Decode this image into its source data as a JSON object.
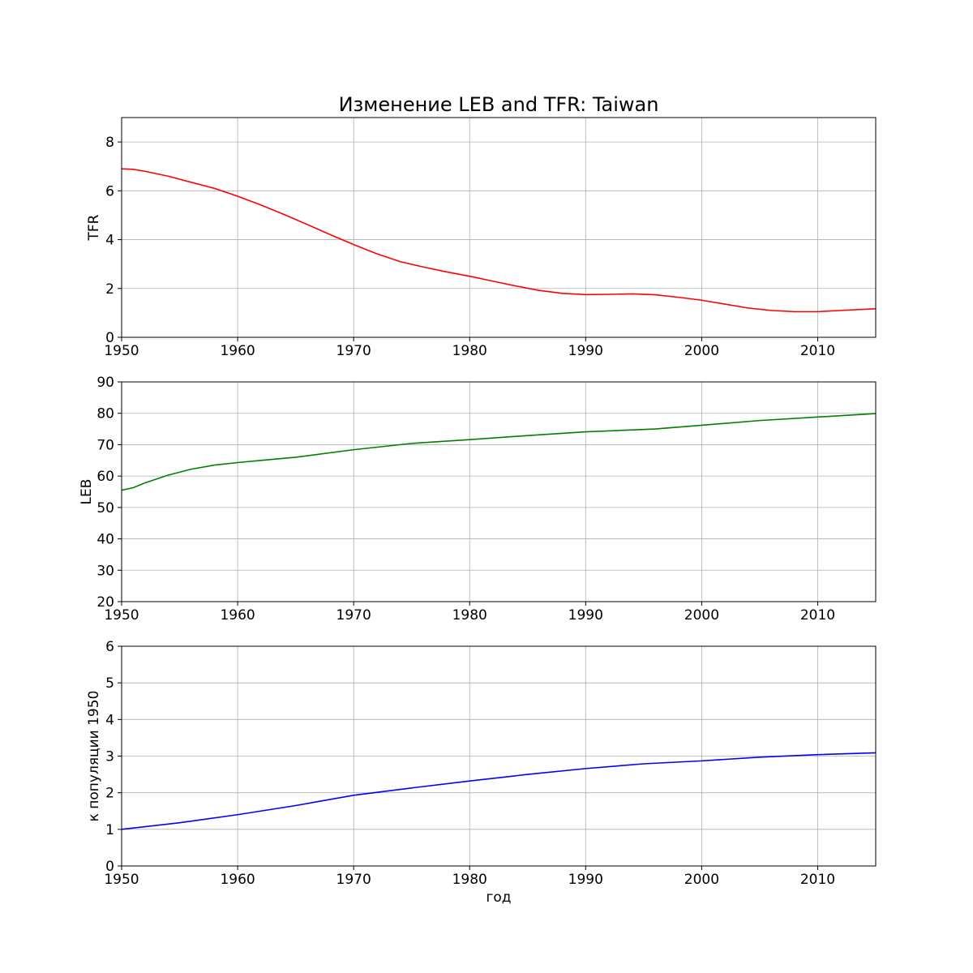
{
  "chart_data": {
    "type": "line",
    "title": "Изменение LEB and TFR: Taiwan",
    "xlabel": "год",
    "xlim": [
      1950,
      2015
    ],
    "xticks": [
      1950,
      1960,
      1970,
      1980,
      1990,
      2000,
      2010
    ],
    "grid": true,
    "subplots": [
      {
        "ylabel": "TFR",
        "ylim": [
          0,
          9
        ],
        "yticks": [
          0,
          2,
          4,
          6,
          8
        ],
        "color": "#ff0000",
        "x": [
          1950,
          1951,
          1952,
          1954,
          1956,
          1958,
          1960,
          1962,
          1964,
          1966,
          1968,
          1970,
          1972,
          1974,
          1976,
          1978,
          1980,
          1982,
          1984,
          1986,
          1988,
          1990,
          1992,
          1994,
          1996,
          1998,
          2000,
          2002,
          2004,
          2006,
          2008,
          2010,
          2012,
          2015
        ],
        "y": [
          6.9,
          6.88,
          6.8,
          6.6,
          6.35,
          6.1,
          5.78,
          5.42,
          5.03,
          4.62,
          4.2,
          3.8,
          3.42,
          3.1,
          2.88,
          2.68,
          2.5,
          2.3,
          2.1,
          1.92,
          1.8,
          1.75,
          1.76,
          1.78,
          1.74,
          1.64,
          1.52,
          1.36,
          1.2,
          1.1,
          1.05,
          1.05,
          1.1,
          1.17
        ]
      },
      {
        "ylabel": "LEB",
        "ylim": [
          20,
          90
        ],
        "yticks": [
          20,
          30,
          40,
          50,
          60,
          70,
          80,
          90
        ],
        "color": "#008000",
        "x": [
          1950,
          1951,
          1952,
          1954,
          1956,
          1958,
          1960,
          1962,
          1965,
          1970,
          1975,
          1980,
          1985,
          1990,
          1996,
          2000,
          2005,
          2010,
          2015
        ],
        "y": [
          55.5,
          56.3,
          57.8,
          60.3,
          62.2,
          63.5,
          64.3,
          65.0,
          66.0,
          68.4,
          70.4,
          71.6,
          72.9,
          74.1,
          75.0,
          76.2,
          77.7,
          78.8,
          79.9
        ]
      },
      {
        "ylabel": "к популяции 1950",
        "ylim": [
          0,
          6
        ],
        "yticks": [
          0,
          1,
          2,
          3,
          4,
          5,
          6
        ],
        "color": "#0000ff",
        "x": [
          1950,
          1955,
          1960,
          1965,
          1970,
          1975,
          1980,
          1985,
          1990,
          1995,
          2000,
          2005,
          2010,
          2015
        ],
        "y": [
          1.0,
          1.18,
          1.4,
          1.65,
          1.93,
          2.13,
          2.32,
          2.5,
          2.66,
          2.79,
          2.87,
          2.97,
          3.04,
          3.09
        ]
      }
    ]
  }
}
